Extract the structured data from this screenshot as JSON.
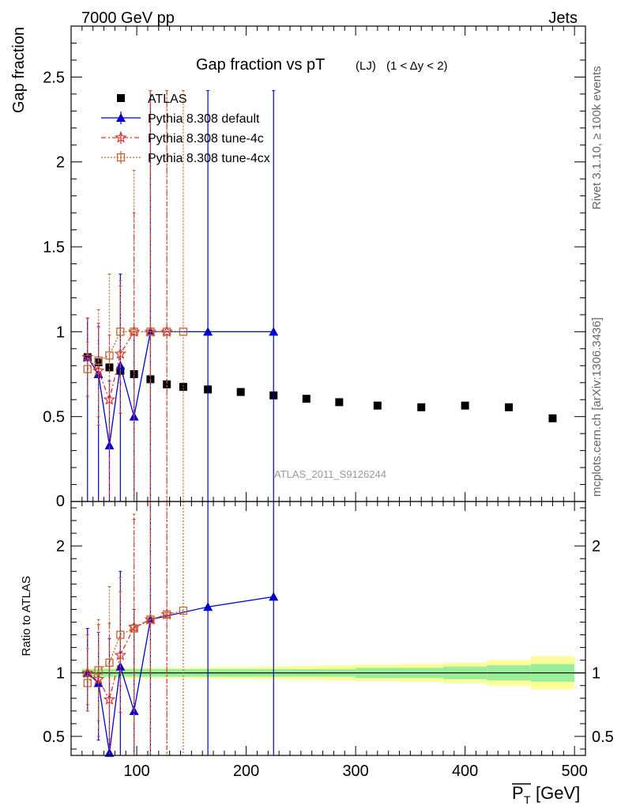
{
  "header": {
    "left": "7000 GeV pp",
    "right": "Jets"
  },
  "side_labels": {
    "rivet": "Rivet 3.1.10, ≥ 100k events",
    "mcplots": "mcplots.cern.ch [arXiv:1306.3436]"
  },
  "chart_data": [
    {
      "type": "scatter",
      "panel": "main",
      "title_main": "Gap fraction vs pT",
      "title_sub": "(LJ)",
      "title_cond": "(1 < Δy < 2)",
      "ylabel": "Gap fraction",
      "watermark": "ATLAS_2011_S9126244",
      "xlim": [
        40,
        510
      ],
      "ylim": [
        0,
        2.8
      ],
      "y_ticks": [
        0.5,
        1,
        1.5,
        2,
        2.5
      ],
      "y_tick_labels": [
        "0.5",
        "1",
        "1.5",
        "2",
        "2.5"
      ],
      "y_edge_label": "0",
      "legend_position": "top-left",
      "series": [
        {
          "name": "ATLAS",
          "style": "data",
          "color": "#000000",
          "x": [
            55,
            65,
            75,
            85,
            97.5,
            112.5,
            127.5,
            142.5,
            165,
            195,
            225,
            255,
            285,
            320,
            360,
            400,
            440,
            480
          ],
          "y": [
            0.85,
            0.82,
            0.79,
            0.77,
            0.75,
            0.72,
            0.69,
            0.675,
            0.66,
            0.645,
            0.625,
            0.605,
            0.585,
            0.565,
            0.555,
            0.565,
            0.555,
            0.49
          ]
        },
        {
          "name": "Pythia 8.308 default",
          "style": "triangle",
          "color": "#0000cc",
          "x": [
            55,
            65,
            75,
            85,
            97.5,
            112.5,
            165,
            225
          ],
          "y": [
            0.85,
            0.75,
            0.33,
            0.8,
            0.5,
            1.0,
            1.0,
            1.0
          ],
          "err_lo": [
            0.85,
            0.75,
            0.33,
            0.8,
            0.5,
            1.0,
            1.0,
            1.0
          ],
          "err_hi": [
            0.23,
            0.28,
            0.38,
            0.54,
            0.5,
            1.42,
            1.42,
            1.42
          ]
        },
        {
          "name": "Pythia 8.308 tune-4c",
          "style": "star",
          "color": "#dd3333",
          "x": [
            55,
            65,
            75,
            85,
            97.5,
            112.5,
            127.5
          ],
          "y": [
            0.85,
            0.77,
            0.6,
            0.87,
            1.0,
            1.0,
            1.0
          ],
          "err_lo": [
            0.23,
            0.32,
            0.6,
            0.35,
            1.0,
            1.0,
            1.0
          ],
          "err_hi": [
            0.23,
            0.28,
            0.38,
            0.4,
            0.7,
            1.42,
            1.42
          ]
        },
        {
          "name": "Pythia 8.308 tune-4cx",
          "style": "square_open",
          "color": "#bb6633",
          "x": [
            55,
            65,
            75,
            85,
            97.5,
            112.5,
            127.5,
            142.5
          ],
          "y": [
            0.78,
            0.83,
            0.86,
            1.0,
            1.0,
            1.0,
            1.0,
            1.0
          ],
          "err_lo": [
            0.16,
            0.33,
            0.46,
            0.3,
            1.0,
            1.0,
            1.0,
            1.0
          ],
          "err_hi": [
            0.16,
            0.3,
            0.48,
            0.3,
            0.95,
            1.42,
            1.42,
            1.42
          ]
        }
      ]
    },
    {
      "type": "scatter",
      "panel": "ratio",
      "ylabel": "Ratio to ATLAS",
      "xlabel": "P",
      "xlabel_sub": "T",
      "xlabel_unit": "[GeV]",
      "xlim": [
        40,
        510
      ],
      "ylim": [
        0.35,
        2.35
      ],
      "x_ticks": [
        100,
        200,
        300,
        400,
        500
      ],
      "x_tick_labels": [
        "100",
        "200",
        "300",
        "400",
        "500"
      ],
      "y_ticks": [
        0.5,
        1,
        2
      ],
      "y_tick_labels": [
        "0.5",
        "1",
        "2"
      ],
      "bands": {
        "edges": [
          50,
          60,
          70,
          80,
          90,
          105,
          120,
          135,
          150,
          180,
          210,
          240,
          270,
          300,
          340,
          380,
          420,
          460,
          500
        ],
        "inner_half": [
          0.03,
          0.03,
          0.03,
          0.03,
          0.03,
          0.03,
          0.03,
          0.03,
          0.03,
          0.03,
          0.03,
          0.03,
          0.03,
          0.04,
          0.04,
          0.05,
          0.06,
          0.07
        ],
        "outer_half": [
          0.04,
          0.04,
          0.04,
          0.04,
          0.04,
          0.04,
          0.04,
          0.04,
          0.045,
          0.045,
          0.05,
          0.055,
          0.06,
          0.065,
          0.07,
          0.08,
          0.1,
          0.13
        ],
        "inner_color": "#99ee99",
        "outer_color": "#ffff99"
      },
      "series": [
        {
          "name": "Pythia 8.308 default",
          "style": "triangle",
          "color": "#0000cc",
          "x": [
            55,
            65,
            75,
            85,
            97.5,
            112.5,
            165,
            225
          ],
          "y": [
            1.0,
            0.92,
            0.37,
            1.05,
            0.7,
            1.42,
            1.52,
            1.6
          ],
          "err_lo": [
            0.3,
            0.45,
            0.2,
            0.9,
            0.5,
            1.5,
            1.5,
            1.5
          ],
          "err_hi": [
            0.35,
            0.4,
            0.9,
            0.75,
            0.8,
            1.5,
            1.5,
            1.5
          ]
        },
        {
          "name": "Pythia 8.308 tune-4c",
          "style": "star",
          "color": "#dd3333",
          "x": [
            55,
            65,
            75,
            85,
            97.5,
            112.5,
            127.5
          ],
          "y": [
            1.0,
            0.95,
            0.79,
            1.14,
            1.36,
            1.42,
            1.46
          ],
          "err_lo": [
            0.25,
            0.45,
            0.55,
            0.45,
            1.1,
            1.5,
            1.5
          ],
          "err_hi": [
            0.3,
            0.43,
            0.6,
            0.5,
            0.85,
            1.5,
            1.5
          ]
        },
        {
          "name": "Pythia 8.308 tune-4cx",
          "style": "square_open",
          "color": "#bb6633",
          "x": [
            55,
            65,
            75,
            85,
            97.5,
            112.5,
            127.5,
            142.5
          ],
          "y": [
            0.92,
            1.02,
            1.08,
            1.3,
            1.35,
            1.42,
            1.46,
            1.49
          ],
          "err_lo": [
            0.22,
            0.4,
            0.6,
            0.4,
            1.1,
            1.5,
            1.5,
            1.5
          ],
          "err_hi": [
            0.27,
            0.4,
            0.6,
            0.45,
            0.9,
            1.5,
            1.5,
            1.5
          ]
        }
      ]
    }
  ]
}
